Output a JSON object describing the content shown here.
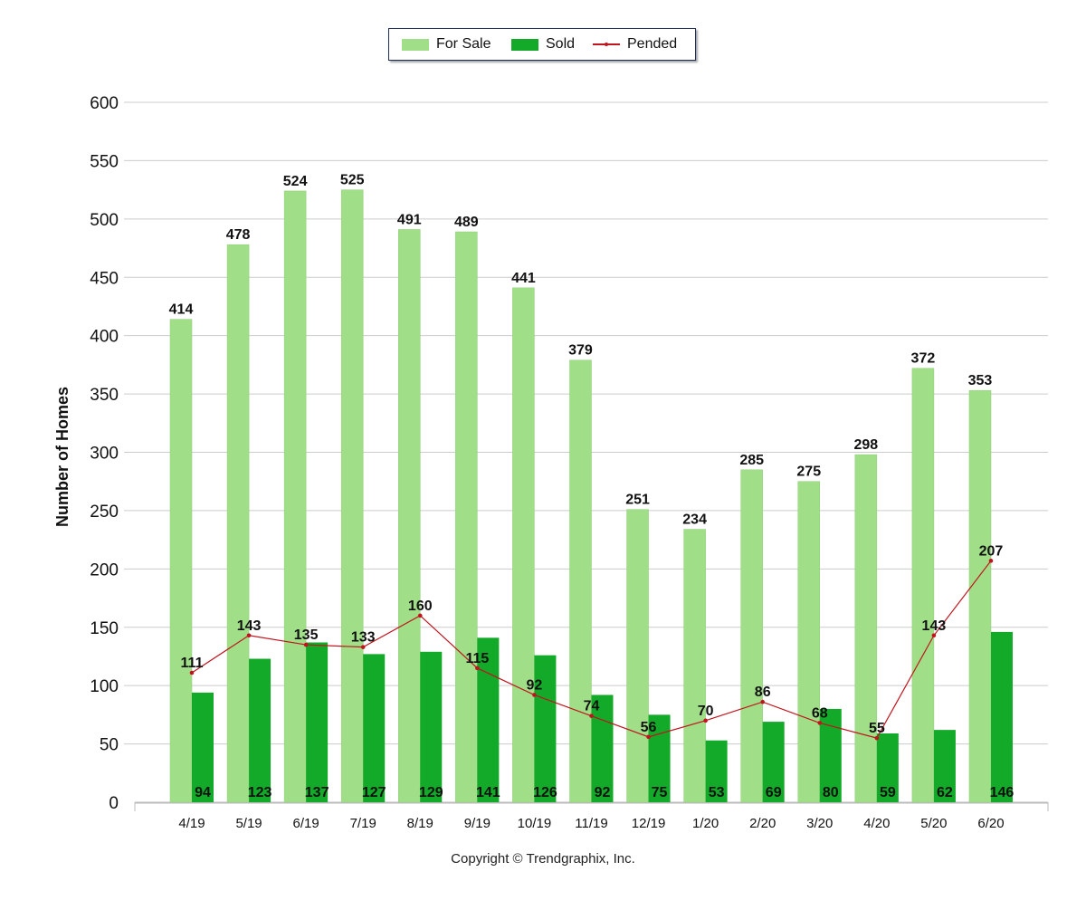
{
  "chart_data": {
    "type": "bar",
    "categories": [
      "4/19",
      "5/19",
      "6/19",
      "7/19",
      "8/19",
      "9/19",
      "10/19",
      "11/19",
      "12/19",
      "1/20",
      "2/20",
      "3/20",
      "4/20",
      "5/20",
      "6/20"
    ],
    "series": [
      {
        "name": "For Sale",
        "kind": "bar",
        "color": "#a0df88",
        "values": [
          414,
          478,
          524,
          525,
          491,
          489,
          441,
          379,
          251,
          234,
          285,
          275,
          298,
          372,
          353
        ]
      },
      {
        "name": "Sold",
        "kind": "bar",
        "color": "#12aa28",
        "values": [
          94,
          123,
          137,
          127,
          129,
          141,
          126,
          92,
          75,
          53,
          69,
          80,
          59,
          62,
          146
        ]
      },
      {
        "name": "Pended",
        "kind": "line",
        "color": "#c0141e",
        "values": [
          111,
          143,
          135,
          133,
          160,
          115,
          92,
          74,
          56,
          70,
          86,
          68,
          55,
          143,
          207
        ]
      }
    ],
    "ylabel": "Number of Homes",
    "ylim": [
      0,
      600
    ],
    "yticks": [
      0,
      50,
      100,
      150,
      200,
      250,
      300,
      350,
      400,
      450,
      500,
      550,
      600
    ],
    "grid": true,
    "legend_position": "top-center"
  },
  "footer": {
    "copyright": "Copyright © Trendgraphix, Inc."
  }
}
